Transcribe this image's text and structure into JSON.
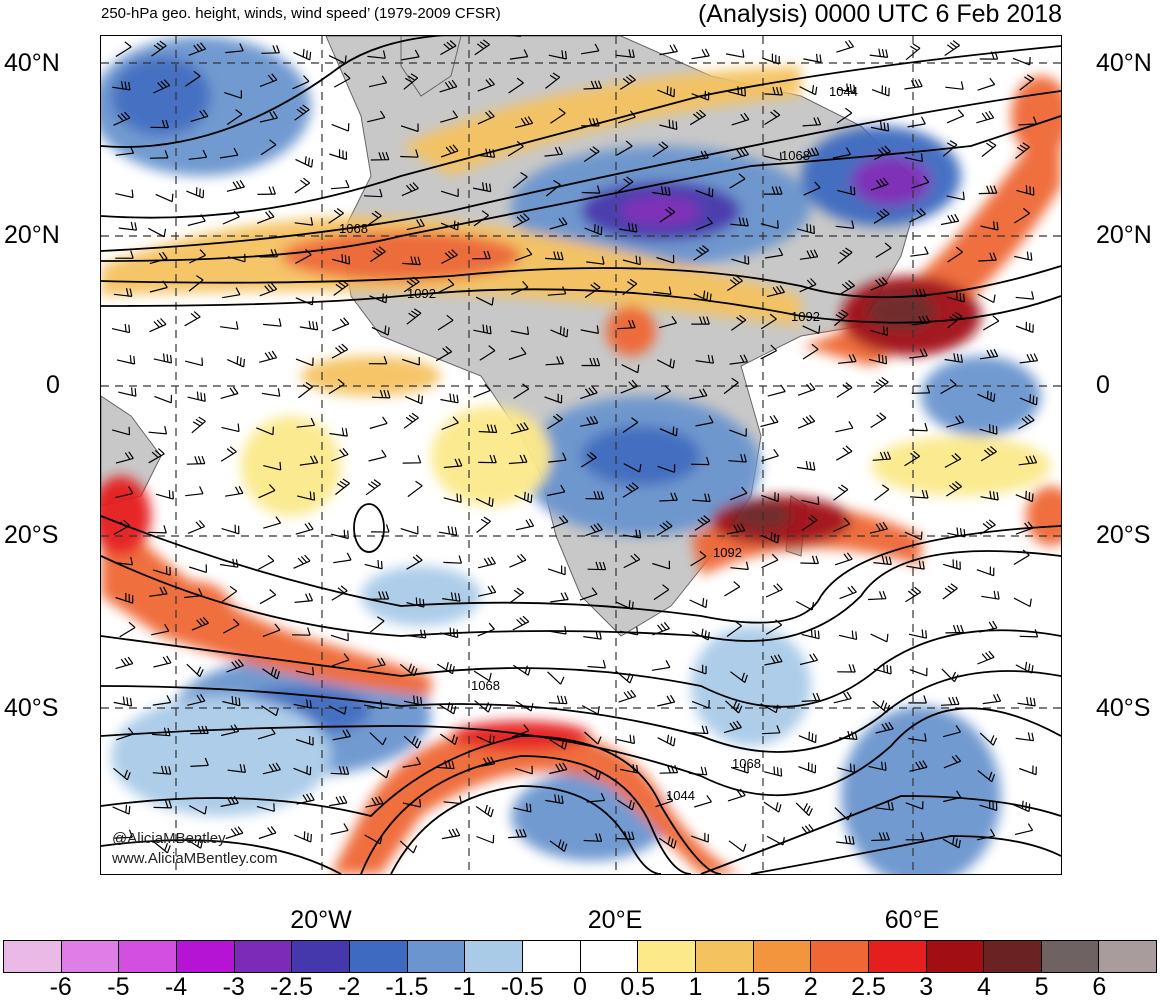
{
  "header": {
    "left_title": "250-hPa geo. height, winds, wind speed’ (1979-2009 CFSR)",
    "right_title": "(Analysis) 0000 UTC 6 Feb 2018"
  },
  "lat_axis": {
    "left": [
      "40°N",
      "20°N",
      "0",
      "20°S",
      "40°S"
    ],
    "right": [
      "40°N",
      "20°N",
      "0",
      "20°S",
      "40°S"
    ]
  },
  "lon_axis": [
    "20°W",
    "20°E",
    "60°E"
  ],
  "contour_labels": [
    "1044",
    "1068",
    "1068",
    "1092",
    "1092",
    "1092",
    "1068",
    "1068",
    "1044"
  ],
  "credits": {
    "handle": "@AliciaMBentley",
    "site": "www.AliciaMBentley.com"
  },
  "colorbar": {
    "labels": [
      "-6",
      "-5",
      "-4",
      "-3",
      "-2.5",
      "-2",
      "-1.5",
      "-1",
      "-0.5",
      "0",
      "0.5",
      "1",
      "1.5",
      "2",
      "2.5",
      "3",
      "4",
      "5",
      "6"
    ],
    "colors": [
      "#ebb9e6",
      "#e07ee8",
      "#d34fe0",
      "#b514d4",
      "#7b2bb8",
      "#4538ad",
      "#3e6bbf",
      "#6b95cf",
      "#a9cbe8",
      "#ffffff",
      "#ffffff",
      "#fbe98a",
      "#f5c260",
      "#f3953f",
      "#ef6735",
      "#e51e1e",
      "#a10f12",
      "#6b2222",
      "#6f6262",
      "#a89c9c"
    ]
  }
}
